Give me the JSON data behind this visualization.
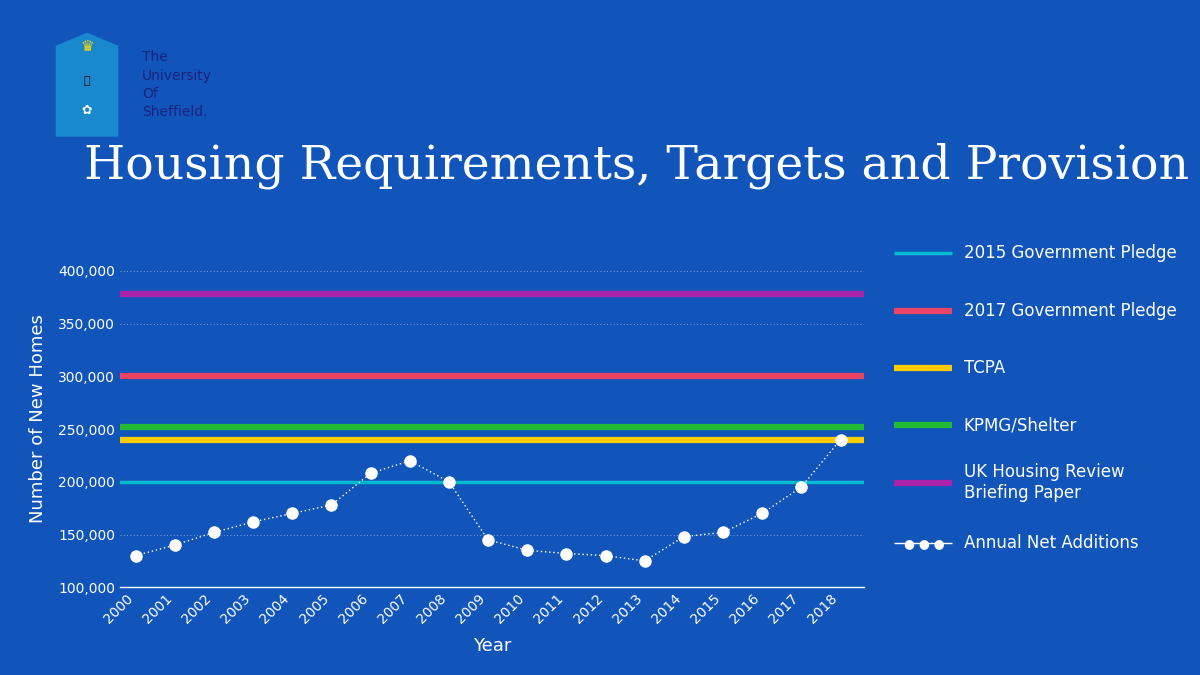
{
  "title": "Housing Requirements, Targets and Provision",
  "background_color": "#1155BB",
  "plot_bg_color": "#1155BB",
  "xlabel": "Year",
  "ylabel": "Number of New Homes",
  "years": [
    2000,
    2001,
    2002,
    2003,
    2004,
    2005,
    2006,
    2007,
    2008,
    2009,
    2010,
    2011,
    2012,
    2013,
    2014,
    2015,
    2016,
    2017,
    2018
  ],
  "annual_net_additions": [
    130000,
    140000,
    152000,
    162000,
    170000,
    178000,
    208000,
    220000,
    200000,
    145000,
    135000,
    132000,
    130000,
    125000,
    148000,
    152000,
    170000,
    195000,
    240000
  ],
  "gov_pledge_2015": 200000,
  "gov_pledge_2015_color": "#00BBCC",
  "gov_pledge_2017": 300000,
  "gov_pledge_2017_color": "#EE4466",
  "tcpa": 240000,
  "tcpa_color": "#FFCC00",
  "kpmg_shelter": 252000,
  "kpmg_shelter_color": "#22BB33",
  "uk_housing_review": 378000,
  "uk_housing_review_color": "#AA22AA",
  "dot_color": "#FFFFFF",
  "grid_color": "#FFFFFF",
  "text_color": "#FFFFFF",
  "ylim_min": 100000,
  "ylim_max": 420000,
  "title_fontsize": 34,
  "axis_label_fontsize": 13,
  "tick_fontsize": 10,
  "legend_fontsize": 12
}
